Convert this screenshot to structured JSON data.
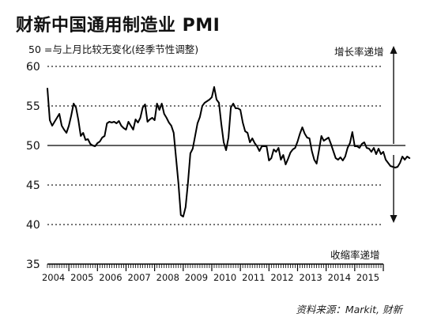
{
  "title": "财新中国通用制造业 PMI",
  "subtitle": "50 =与上月比较无变化(经季节性调整)",
  "source": "资料来源：Markit, 财新",
  "annotations": {
    "up": "增长率递增",
    "down": "收缩率递增"
  },
  "colors": {
    "line": "#000000",
    "grid": "#222222",
    "reference": "#000000"
  },
  "chart_data": {
    "type": "line",
    "title": "财新中国通用制造业 PMI",
    "subtitle": "50 =与上月比较无变化(经季节性调整)",
    "xlabel": "",
    "ylabel": "",
    "ylim": [
      35,
      60
    ],
    "yticks": [
      35,
      40,
      45,
      50,
      55,
      60
    ],
    "grid": "dotted horizontal at 45, 55, 60",
    "reference_line": 50,
    "x_start": "2004-04",
    "x_end": "2016-01",
    "x_tick_labels": [
      "2004",
      "2005",
      "2006",
      "2007",
      "2008",
      "2009",
      "2010",
      "2011",
      "2012",
      "2013",
      "2014",
      "2015"
    ],
    "series": [
      {
        "values": [
          57.2,
          53.2,
          52.5,
          53.0,
          53.5,
          54.0,
          52.5,
          52.0,
          51.6,
          52.5,
          53.8,
          55.3,
          54.8,
          53.2,
          51.2,
          51.6,
          50.7,
          50.8,
          50.2,
          50.0,
          49.9,
          50.3,
          50.5,
          51.0,
          51.2,
          52.8,
          53.0,
          52.9,
          53.0,
          52.8,
          53.1,
          52.5,
          52.2,
          52.0,
          53.0,
          52.5,
          52.0,
          53.3,
          52.9,
          53.5,
          54.8,
          55.2,
          53.0,
          53.3,
          53.5,
          53.2,
          55.3,
          54.5,
          55.3,
          54.0,
          53.5,
          52.9,
          52.5,
          51.6,
          48.4,
          45.2,
          41.2,
          41.0,
          42.2,
          45.3,
          49.0,
          49.6,
          51.2,
          52.8,
          53.6,
          55.0,
          55.4,
          55.6,
          55.8,
          56.1,
          57.4,
          55.8,
          55.4,
          52.7,
          50.4,
          49.4,
          51.0,
          54.8,
          55.3,
          54.7,
          54.7,
          54.5,
          52.9,
          51.8,
          51.6,
          50.4,
          50.9,
          50.3,
          49.9,
          49.3,
          49.9,
          49.9,
          49.9,
          48.1,
          48.4,
          49.5,
          49.2,
          49.7,
          48.2,
          48.8,
          47.6,
          48.3,
          49.1,
          49.5,
          49.7,
          50.5,
          51.5,
          52.3,
          51.5,
          51.0,
          50.9,
          49.3,
          48.2,
          47.7,
          49.4,
          51.2,
          50.6,
          50.8,
          51.0,
          50.2,
          49.3,
          48.4,
          48.2,
          48.5,
          48.1,
          48.6,
          49.7,
          50.3,
          51.7,
          49.9,
          49.9,
          49.7,
          50.2,
          50.4,
          49.7,
          49.6,
          49.2,
          49.7,
          48.9,
          49.6,
          48.9,
          49.2,
          48.2,
          47.8,
          47.4,
          47.3,
          47.2,
          47.3,
          47.8,
          48.6,
          48.2,
          48.6,
          48.4
        ]
      }
    ]
  }
}
